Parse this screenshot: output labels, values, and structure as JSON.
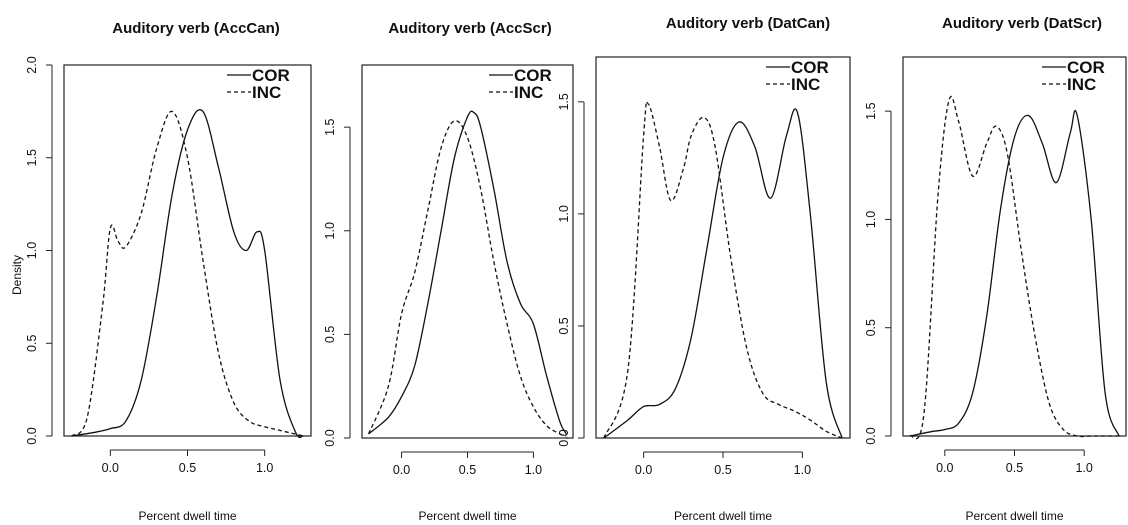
{
  "chart_data": [
    {
      "type": "line",
      "title": "Auditory verb (AccCan)",
      "xlabel": "Percent dwell time",
      "ylabel": "Density",
      "xlim": [
        -0.3,
        1.3
      ],
      "ylim": [
        0,
        2.0
      ],
      "xticks": [
        0.0,
        0.5,
        1.0
      ],
      "xtick_labels": [
        "0.0",
        "0.5",
        "1.0"
      ],
      "yticks": [
        0.0,
        0.5,
        1.0,
        1.5,
        2.0
      ],
      "ytick_labels": [
        "0.0",
        "0.5",
        "1.0",
        "1.5",
        "2.0"
      ],
      "legend": {
        "position": "top-right",
        "entries": [
          "COR",
          "INC"
        ]
      },
      "series": [
        {
          "name": "COR",
          "style": "solid",
          "x": [
            -0.25,
            -0.1,
            0.0,
            0.1,
            0.2,
            0.3,
            0.4,
            0.5,
            0.6,
            0.7,
            0.8,
            0.88,
            0.95,
            1.0,
            1.1,
            1.2,
            1.25
          ],
          "y": [
            0.0,
            0.02,
            0.04,
            0.08,
            0.3,
            0.75,
            1.3,
            1.65,
            1.75,
            1.45,
            1.1,
            1.0,
            1.1,
            1.0,
            0.3,
            0.02,
            0.0
          ]
        },
        {
          "name": "INC",
          "style": "dashed",
          "x": [
            -0.25,
            -0.15,
            -0.05,
            0.0,
            0.05,
            0.1,
            0.2,
            0.3,
            0.4,
            0.5,
            0.6,
            0.7,
            0.8,
            0.9,
            1.0,
            1.1,
            1.2,
            1.25
          ],
          "y": [
            0.0,
            0.1,
            0.7,
            1.12,
            1.05,
            1.02,
            1.2,
            1.55,
            1.75,
            1.5,
            0.95,
            0.45,
            0.18,
            0.08,
            0.05,
            0.03,
            0.01,
            0.0
          ]
        }
      ]
    },
    {
      "type": "line",
      "title": "Auditory verb (AccScr)",
      "xlabel": "Percent dwell time",
      "ylabel": "",
      "xlim": [
        -0.3,
        1.3
      ],
      "ylim": [
        0,
        1.8
      ],
      "xticks": [
        0.0,
        0.5,
        1.0
      ],
      "xtick_labels": [
        "0.0",
        "0.5",
        "1.0"
      ],
      "yticks": [
        0.0,
        0.5,
        1.0,
        1.5
      ],
      "ytick_labels": [
        "0.0",
        "0.5",
        "1.0",
        "1.5"
      ],
      "legend": {
        "position": "top-right",
        "entries": [
          "COR",
          "INC"
        ]
      },
      "series": [
        {
          "name": "COR",
          "style": "solid",
          "x": [
            -0.25,
            -0.1,
            0.0,
            0.1,
            0.2,
            0.3,
            0.4,
            0.5,
            0.55,
            0.6,
            0.7,
            0.8,
            0.9,
            1.0,
            1.1,
            1.2,
            1.25
          ],
          "y": [
            0.02,
            0.1,
            0.2,
            0.35,
            0.65,
            1.0,
            1.35,
            1.55,
            1.57,
            1.5,
            1.2,
            0.85,
            0.65,
            0.55,
            0.3,
            0.08,
            0.02
          ]
        },
        {
          "name": "INC",
          "style": "dashed",
          "x": [
            -0.25,
            -0.1,
            0.0,
            0.1,
            0.2,
            0.3,
            0.4,
            0.5,
            0.6,
            0.7,
            0.8,
            0.9,
            1.0,
            1.1,
            1.2,
            1.25
          ],
          "y": [
            0.02,
            0.25,
            0.6,
            0.8,
            1.1,
            1.4,
            1.53,
            1.45,
            1.2,
            0.85,
            0.55,
            0.3,
            0.15,
            0.06,
            0.02,
            0.01
          ]
        }
      ]
    },
    {
      "type": "line",
      "title": "Auditory verb (DatCan)",
      "xlabel": "Percent dwell time",
      "ylabel": "",
      "xlim": [
        -0.3,
        1.3
      ],
      "ylim": [
        0,
        1.7
      ],
      "xticks": [
        0.0,
        0.5,
        1.0
      ],
      "xtick_labels": [
        "0.0",
        "0.5",
        "1.0"
      ],
      "yticks": [
        0.0,
        0.5,
        1.0,
        1.5
      ],
      "ytick_labels": [
        "0.0",
        "0.5",
        "1.0",
        "1.5"
      ],
      "legend": {
        "position": "top-right",
        "entries": [
          "COR",
          "INC"
        ]
      },
      "series": [
        {
          "name": "COR",
          "style": "solid",
          "x": [
            -0.25,
            -0.1,
            0.0,
            0.1,
            0.2,
            0.3,
            0.4,
            0.5,
            0.6,
            0.7,
            0.8,
            0.9,
            0.97,
            1.05,
            1.15,
            1.25
          ],
          "y": [
            0.0,
            0.08,
            0.14,
            0.15,
            0.22,
            0.45,
            0.85,
            1.25,
            1.41,
            1.3,
            1.07,
            1.35,
            1.45,
            1.0,
            0.25,
            0.0
          ]
        },
        {
          "name": "INC",
          "style": "dashed",
          "x": [
            -0.25,
            -0.1,
            0.0,
            0.03,
            0.1,
            0.17,
            0.25,
            0.3,
            0.38,
            0.45,
            0.55,
            0.65,
            0.75,
            0.85,
            0.95,
            1.05,
            1.15,
            1.25
          ],
          "y": [
            0.0,
            0.3,
            1.35,
            1.49,
            1.3,
            1.06,
            1.2,
            1.35,
            1.43,
            1.3,
            0.8,
            0.4,
            0.2,
            0.15,
            0.12,
            0.08,
            0.03,
            0.0
          ]
        }
      ]
    },
    {
      "type": "line",
      "title": "Auditory verb (DatScr)",
      "xlabel": "Percent dwell time",
      "ylabel": "",
      "xlim": [
        -0.3,
        1.3
      ],
      "ylim": [
        0,
        1.75
      ],
      "xticks": [
        0.0,
        0.5,
        1.0
      ],
      "xtick_labels": [
        "0.0",
        "0.5",
        "1.0"
      ],
      "yticks": [
        0.0,
        0.5,
        1.0,
        1.5
      ],
      "ytick_labels": [
        "0.0",
        "0.5",
        "1.0",
        "1.5"
      ],
      "legend": {
        "position": "top-right",
        "entries": [
          "COR",
          "INC"
        ]
      },
      "series": [
        {
          "name": "COR",
          "style": "solid",
          "x": [
            -0.25,
            -0.1,
            0.0,
            0.1,
            0.2,
            0.3,
            0.4,
            0.5,
            0.6,
            0.7,
            0.8,
            0.9,
            0.95,
            1.05,
            1.15,
            1.25
          ],
          "y": [
            0.0,
            0.02,
            0.03,
            0.06,
            0.2,
            0.55,
            1.05,
            1.38,
            1.48,
            1.35,
            1.17,
            1.4,
            1.48,
            1.0,
            0.2,
            0.0
          ]
        },
        {
          "name": "INC",
          "style": "dashed",
          "x": [
            -0.25,
            -0.15,
            -0.05,
            0.03,
            0.1,
            0.2,
            0.3,
            0.37,
            0.45,
            0.55,
            0.65,
            0.75,
            0.85,
            0.95,
            1.05,
            1.15,
            1.25
          ],
          "y": [
            0.0,
            0.1,
            1.1,
            1.55,
            1.45,
            1.2,
            1.35,
            1.43,
            1.3,
            0.85,
            0.45,
            0.15,
            0.03,
            0.0,
            0.0,
            0.0,
            0.0
          ]
        }
      ]
    }
  ]
}
